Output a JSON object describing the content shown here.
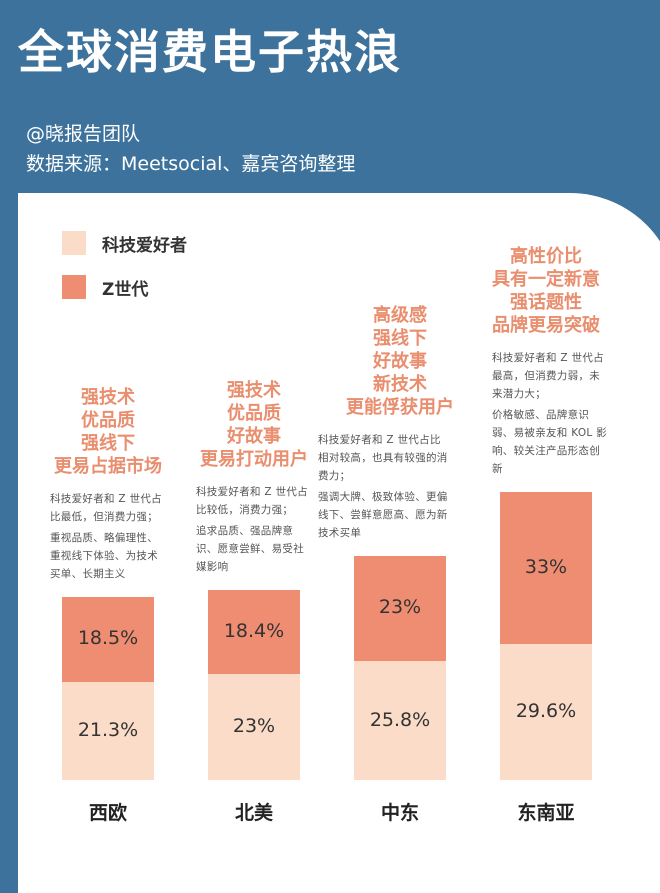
{
  "header": {
    "title": "全球消费电子热浪",
    "author": "@晓报告团队",
    "source": "数据来源：Meetsocial、嘉宾咨询整理"
  },
  "colors": {
    "background": "#3c729b",
    "tech_enthusiast": "#fbdcc8",
    "gen_z": "#ef8d72",
    "accent_text": "#e98e6e"
  },
  "chart_data": {
    "type": "bar",
    "stacked": true,
    "categories": [
      "西欧",
      "北美",
      "中东",
      "东南亚"
    ],
    "series": [
      {
        "name": "科技爱好者",
        "values": [
          21.3,
          23,
          25.8,
          29.6
        ],
        "labels": [
          "21.3%",
          "23%",
          "25.8%",
          "29.6%"
        ]
      },
      {
        "name": "Z世代",
        "values": [
          18.5,
          18.4,
          23,
          33
        ],
        "labels": [
          "18.5%",
          "18.4%",
          "23%",
          "33%"
        ]
      }
    ],
    "legend": "top-left",
    "grid": false,
    "annotations": [
      {
        "slogan": [
          "强技术",
          "优品质",
          "强线下",
          "更易占据市场"
        ],
        "notes": [
          "科技爱好者和 Z 世代占比最低，但消费力强；",
          "重视品质、略偏理性、重视线下体验、为技术买单、长期主义"
        ]
      },
      {
        "slogan": [
          "强技术",
          "优品质",
          "好故事",
          "更易打动用户"
        ],
        "notes": [
          "科技爱好者和 Z 世代占比较低，消费力强；",
          "追求品质、强品牌意识、愿意尝鲜、易受社媒影响"
        ]
      },
      {
        "slogan": [
          "高级感",
          "强线下",
          "好故事",
          "新技术",
          "更能俘获用户"
        ],
        "notes": [
          "科技爱好者和 Z 世代占比相对较高，也具有较强的消费力；",
          "强调大牌、极致体验、更偏线下、尝鲜意愿高、愿为新技术买单"
        ]
      },
      {
        "slogan": [
          "高性价比",
          "具有一定新意",
          "强话题性",
          "品牌更易突破"
        ],
        "notes": [
          "科技爱好者和 Z 世代占最高，但消费力弱，未来潜力大；",
          "价格敏感、品牌意识弱、易被亲友和 KOL 影响、较关注产品形态创新"
        ]
      }
    ]
  }
}
